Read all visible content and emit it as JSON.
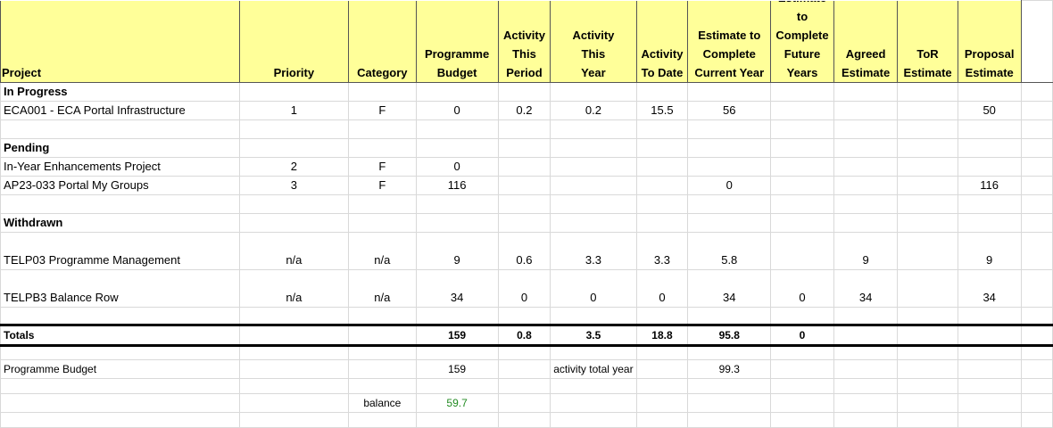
{
  "columns": [
    [
      "Project"
    ],
    [
      "Priority"
    ],
    [
      "Category"
    ],
    [
      "Programme",
      "Budget"
    ],
    [
      "Activity",
      "This",
      "Period"
    ],
    [
      "Activity",
      "This",
      "Year"
    ],
    [
      "Activity",
      "To Date"
    ],
    [
      "Estimate to",
      "Complete",
      "Current Year"
    ],
    [
      "Estimate",
      "to",
      "Complete",
      "Future",
      "Years"
    ],
    [
      "Agreed",
      "Estimate"
    ],
    [
      "ToR",
      "Estimate"
    ],
    [
      "Proposal",
      "Estimate"
    ]
  ],
  "rows": [
    {
      "type": "sec",
      "h": 20,
      "cells": [
        "In Progress"
      ]
    },
    {
      "type": "data",
      "h": 20,
      "cells": [
        "ECA001 - ECA Portal Infrastructure",
        "1",
        "F",
        "0",
        "0.2",
        "0.2",
        "15.5",
        "56",
        "",
        "",
        "",
        "50"
      ]
    },
    {
      "type": "blank",
      "h": 20,
      "cells": []
    },
    {
      "type": "sec",
      "h": 20,
      "cells": [
        "Pending"
      ]
    },
    {
      "type": "data",
      "h": 20,
      "cells": [
        "In-Year Enhancements Project",
        "2",
        "F",
        "0"
      ]
    },
    {
      "type": "data",
      "h": 20,
      "cells": [
        "AP23-033 Portal My Groups",
        "3",
        "F",
        "116",
        "",
        "",
        "",
        "0",
        "",
        "",
        "",
        "116"
      ]
    },
    {
      "type": "blank",
      "h": 20,
      "cells": []
    },
    {
      "type": "sec",
      "h": 20,
      "cells": [
        "Withdrawn"
      ]
    },
    {
      "type": "data",
      "h": 41,
      "cells": [
        "TELP03 Programme Management",
        "n/a",
        "n/a",
        "9",
        "0.6",
        "3.3",
        "3.3",
        "5.8",
        "",
        "9",
        "",
        "9"
      ]
    },
    {
      "type": "data",
      "h": 41,
      "cells": [
        "TELPB3 Balance Row",
        "n/a",
        "n/a",
        "34",
        "0",
        "0",
        "0",
        "34",
        "0",
        "34",
        "",
        "34"
      ]
    },
    {
      "type": "blank",
      "h": 18,
      "cells": []
    },
    {
      "type": "tot",
      "h": 19,
      "cells": [
        "Totals",
        "",
        "",
        "159",
        "0.8",
        "3.5",
        "18.8",
        "95.8",
        "0"
      ]
    },
    {
      "type": "blank",
      "h": 14,
      "cells": []
    },
    {
      "type": "sm",
      "h": 16,
      "cells": [
        "Programme Budget",
        "",
        "",
        "159",
        "",
        "activity total year",
        "",
        "99.3"
      ]
    },
    {
      "type": "blank",
      "h": 16,
      "cells": []
    },
    {
      "type": "sm",
      "h": 16,
      "cells": [
        "",
        "",
        "balance",
        "59.7"
      ]
    },
    {
      "type": "blank",
      "h": 16,
      "cells": []
    }
  ],
  "colors": {
    "header_fill": "#ffff99",
    "balance_value": "#228b22"
  }
}
